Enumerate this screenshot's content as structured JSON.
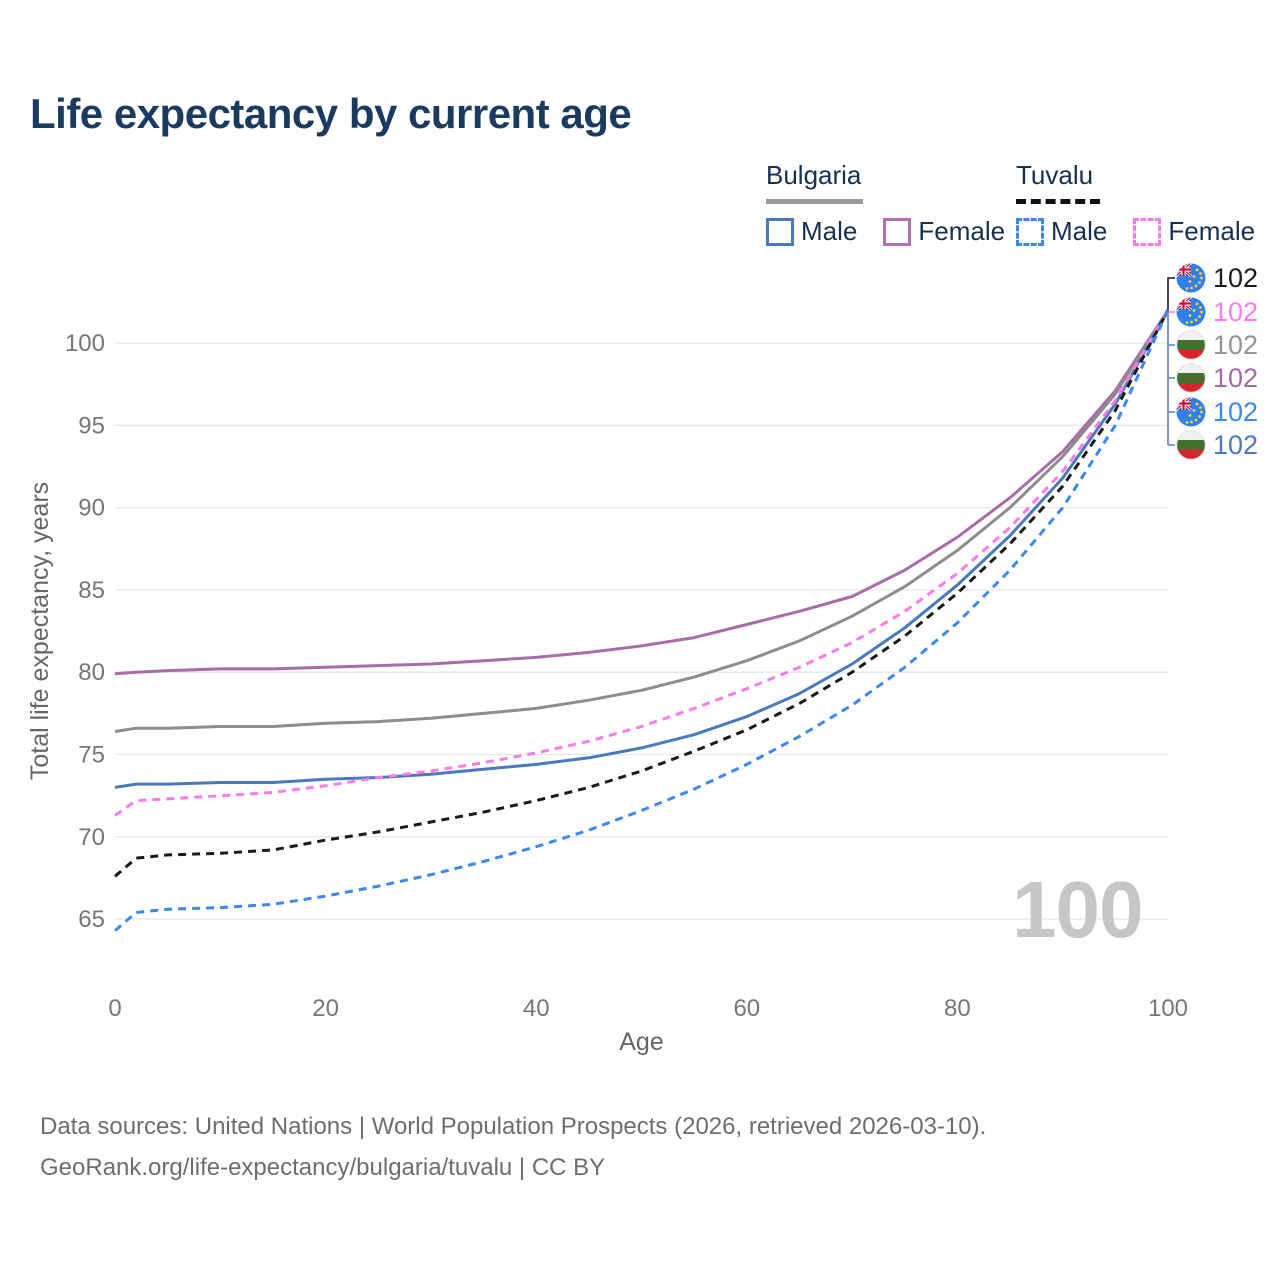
{
  "page": {
    "title": "Life expectancy by current age"
  },
  "colors": {
    "accent_navy": "#1b3a5f",
    "bulgaria_male": "#4a79bd",
    "bulgaria_female": "#a86ca9",
    "bulgaria_total": "#8d8d8d",
    "tuvalu_male": "#3e86f2",
    "tuvalu_female": "#fb7ce8",
    "tuvalu_total": "#1a1a1a",
    "gridline": "#e7e7e7",
    "tick_text": "#767676",
    "watermark": "#c6c6c6"
  },
  "legend": {
    "groups": [
      {
        "label": "Bulgaria",
        "line_style": "solid",
        "items": [
          {
            "label": "Male",
            "color": "#4a79bd"
          },
          {
            "label": "Female",
            "color": "#b072ae"
          }
        ]
      },
      {
        "label": "Tuvalu",
        "line_style": "dashed",
        "items": [
          {
            "label": "Male",
            "color": "#3e86f2"
          },
          {
            "label": "Female",
            "color": "#fb7ce8"
          }
        ]
      }
    ]
  },
  "end_labels": [
    {
      "flag": "tuvalu",
      "series": "Tuvalu Total",
      "value": "102",
      "color": "#1a1a1a"
    },
    {
      "flag": "tuvalu",
      "series": "Tuvalu Female",
      "value": "102",
      "color": "#fb7ce8"
    },
    {
      "flag": "bulgaria",
      "series": "Bulgaria Total",
      "value": "102",
      "color": "#949494"
    },
    {
      "flag": "bulgaria",
      "series": "Bulgaria Female",
      "value": "102",
      "color": "#a06ba6"
    },
    {
      "flag": "tuvalu",
      "series": "Tuvalu Male",
      "value": "102",
      "color": "#3e86f2"
    },
    {
      "flag": "bulgaria",
      "series": "Bulgaria Male",
      "value": "102",
      "color": "#4a79bd"
    }
  ],
  "watermark": {
    "value": "100"
  },
  "footer": {
    "line1": "Data sources: United Nations | World Population Prospects (2026, retrieved 2026-03-10).",
    "line2": "GeoRank.org/life-expectancy/bulgaria/tuvalu | CC BY"
  },
  "chart_data": {
    "type": "line",
    "title": "Life expectancy by current age",
    "xlabel": "Age",
    "ylabel": "Total life expectancy, years",
    "x_ticks": [
      0,
      20,
      40,
      60,
      80,
      100
    ],
    "y_ticks": [
      65,
      70,
      75,
      80,
      85,
      90,
      95,
      100
    ],
    "xlim": [
      0,
      100
    ],
    "ylim": [
      63.5,
      103
    ],
    "grid": "horizontal-only",
    "legend_position": "top-right",
    "series": [
      {
        "name": "Bulgaria Female",
        "country": "Bulgaria",
        "sex": "Female",
        "color": "#a86ca9",
        "dashed": false,
        "points": [
          [
            0,
            79.9
          ],
          [
            2,
            80.0
          ],
          [
            5,
            80.1
          ],
          [
            10,
            80.2
          ],
          [
            15,
            80.2
          ],
          [
            20,
            80.3
          ],
          [
            25,
            80.4
          ],
          [
            30,
            80.5
          ],
          [
            35,
            80.7
          ],
          [
            40,
            80.9
          ],
          [
            45,
            81.2
          ],
          [
            50,
            81.6
          ],
          [
            55,
            82.1
          ],
          [
            60,
            82.9
          ],
          [
            65,
            83.7
          ],
          [
            70,
            84.6
          ],
          [
            75,
            86.2
          ],
          [
            80,
            88.2
          ],
          [
            85,
            90.6
          ],
          [
            90,
            93.4
          ],
          [
            95,
            97.1
          ],
          [
            100,
            102
          ]
        ]
      },
      {
        "name": "Bulgaria Total",
        "country": "Bulgaria",
        "sex": "Total",
        "color": "#8d8d8d",
        "dashed": false,
        "points": [
          [
            0,
            76.4
          ],
          [
            2,
            76.6
          ],
          [
            5,
            76.6
          ],
          [
            10,
            76.7
          ],
          [
            15,
            76.7
          ],
          [
            20,
            76.9
          ],
          [
            25,
            77.0
          ],
          [
            30,
            77.2
          ],
          [
            35,
            77.5
          ],
          [
            40,
            77.8
          ],
          [
            45,
            78.3
          ],
          [
            50,
            78.9
          ],
          [
            55,
            79.7
          ],
          [
            60,
            80.7
          ],
          [
            65,
            81.9
          ],
          [
            70,
            83.4
          ],
          [
            75,
            85.2
          ],
          [
            80,
            87.4
          ],
          [
            85,
            90.0
          ],
          [
            90,
            93.1
          ],
          [
            95,
            96.9
          ],
          [
            100,
            102
          ]
        ]
      },
      {
        "name": "Bulgaria Male",
        "country": "Bulgaria",
        "sex": "Male",
        "color": "#4a79bd",
        "dashed": false,
        "points": [
          [
            0,
            73.0
          ],
          [
            2,
            73.2
          ],
          [
            5,
            73.2
          ],
          [
            10,
            73.3
          ],
          [
            15,
            73.3
          ],
          [
            20,
            73.5
          ],
          [
            25,
            73.6
          ],
          [
            30,
            73.8
          ],
          [
            35,
            74.1
          ],
          [
            40,
            74.4
          ],
          [
            45,
            74.8
          ],
          [
            50,
            75.4
          ],
          [
            55,
            76.2
          ],
          [
            60,
            77.3
          ],
          [
            65,
            78.7
          ],
          [
            70,
            80.5
          ],
          [
            75,
            82.7
          ],
          [
            80,
            85.3
          ],
          [
            85,
            88.3
          ],
          [
            90,
            91.8
          ],
          [
            95,
            96.3
          ],
          [
            100,
            102
          ]
        ]
      },
      {
        "name": "Tuvalu Female",
        "country": "Tuvalu",
        "sex": "Female",
        "color": "#fb7ce8",
        "dashed": true,
        "points": [
          [
            0,
            71.3
          ],
          [
            2,
            72.2
          ],
          [
            5,
            72.3
          ],
          [
            10,
            72.5
          ],
          [
            15,
            72.7
          ],
          [
            20,
            73.1
          ],
          [
            25,
            73.6
          ],
          [
            30,
            74.0
          ],
          [
            35,
            74.5
          ],
          [
            40,
            75.1
          ],
          [
            45,
            75.8
          ],
          [
            50,
            76.7
          ],
          [
            55,
            77.8
          ],
          [
            60,
            79.0
          ],
          [
            65,
            80.3
          ],
          [
            70,
            81.8
          ],
          [
            75,
            83.7
          ],
          [
            80,
            86.0
          ],
          [
            85,
            88.8
          ],
          [
            90,
            92.2
          ],
          [
            95,
            96.5
          ],
          [
            100,
            102
          ]
        ]
      },
      {
        "name": "Tuvalu Total",
        "country": "Tuvalu",
        "sex": "Total",
        "color": "#1a1a1a",
        "dashed": true,
        "points": [
          [
            0,
            67.6
          ],
          [
            2,
            68.7
          ],
          [
            5,
            68.9
          ],
          [
            10,
            69.0
          ],
          [
            15,
            69.2
          ],
          [
            20,
            69.8
          ],
          [
            25,
            70.3
          ],
          [
            30,
            70.9
          ],
          [
            35,
            71.5
          ],
          [
            40,
            72.2
          ],
          [
            45,
            73.0
          ],
          [
            50,
            74.0
          ],
          [
            55,
            75.2
          ],
          [
            60,
            76.5
          ],
          [
            65,
            78.1
          ],
          [
            70,
            80.0
          ],
          [
            75,
            82.2
          ],
          [
            80,
            84.8
          ],
          [
            85,
            87.8
          ],
          [
            90,
            91.3
          ],
          [
            95,
            95.9
          ],
          [
            100,
            102
          ]
        ]
      },
      {
        "name": "Tuvalu Male",
        "country": "Tuvalu",
        "sex": "Male",
        "color": "#3e86f2",
        "dashed": true,
        "points": [
          [
            0,
            64.3
          ],
          [
            2,
            65.4
          ],
          [
            5,
            65.6
          ],
          [
            10,
            65.7
          ],
          [
            15,
            65.9
          ],
          [
            20,
            66.4
          ],
          [
            25,
            67.0
          ],
          [
            30,
            67.7
          ],
          [
            35,
            68.5
          ],
          [
            40,
            69.4
          ],
          [
            45,
            70.4
          ],
          [
            50,
            71.6
          ],
          [
            55,
            72.9
          ],
          [
            60,
            74.4
          ],
          [
            65,
            76.1
          ],
          [
            70,
            78.0
          ],
          [
            75,
            80.3
          ],
          [
            80,
            83.0
          ],
          [
            85,
            86.2
          ],
          [
            90,
            90.0
          ],
          [
            95,
            95.0
          ],
          [
            100,
            102
          ]
        ]
      }
    ]
  }
}
